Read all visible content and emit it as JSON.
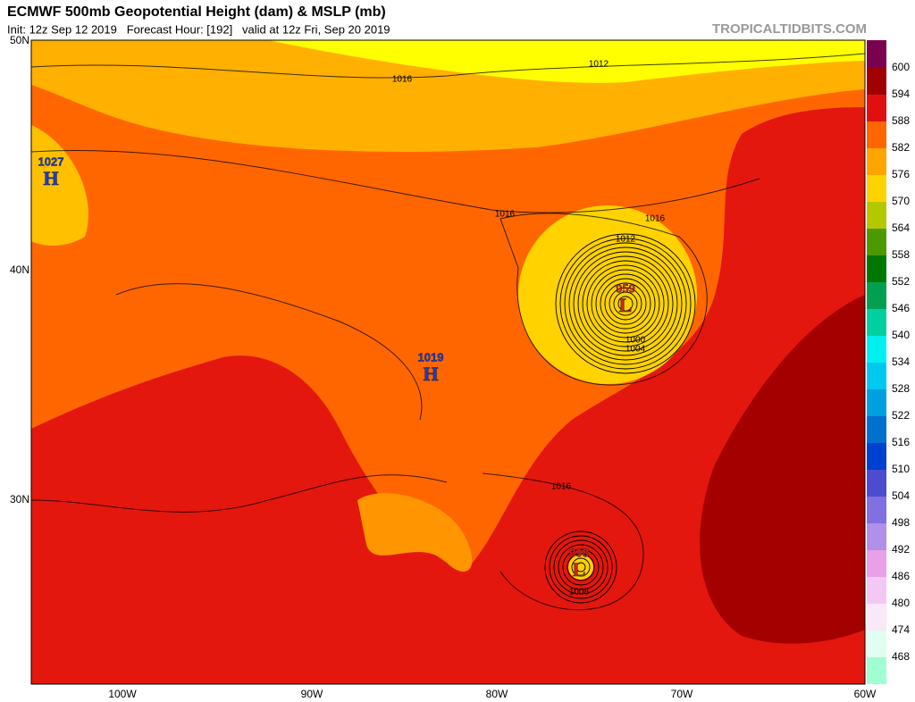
{
  "header": {
    "title": "ECMWF 500mb Geopotential Height (dam) & MSLP (mb)",
    "subtitle": "Init: 12z Sep 12 2019   Forecast Hour: [192]   valid at 12z Fri, Sep 20 2019",
    "watermark": "TROPICALTIDBITS.COM"
  },
  "latitude_labels": [
    "50N",
    "40N",
    "30N"
  ],
  "longitude_labels": [
    "100W",
    "90W",
    "80W",
    "70W",
    "60W"
  ],
  "colorbar": {
    "labels": [
      600,
      594,
      588,
      582,
      576,
      570,
      564,
      558,
      552,
      546,
      540,
      534,
      528,
      522,
      516,
      510,
      504,
      498,
      492,
      486,
      480,
      474,
      468
    ],
    "colors": [
      "#7a0050",
      "#a00000",
      "#e01010",
      "#ff6600",
      "#ffa500",
      "#ffd200",
      "#b4c800",
      "#4c9a00",
      "#007800",
      "#00a050",
      "#00d0a0",
      "#00f0f0",
      "#00c8f0",
      "#00a0e0",
      "#0070d0",
      "#0040d0",
      "#4c4cd0",
      "#8070e0",
      "#b090e8",
      "#e8a0e8",
      "#f4c8f4",
      "#f8e8f8",
      "#e0fff0",
      "#a0ffd0"
    ]
  },
  "pressure_centers": [
    {
      "type": "H",
      "value": "1027"
    },
    {
      "type": "H",
      "value": "1019"
    },
    {
      "type": "L",
      "value": "959"
    },
    {
      "type": "L",
      "value": "998"
    }
  ],
  "isobar_labels": [
    "1016",
    "1012",
    "1016",
    "1016",
    "1012",
    "1000",
    "1004",
    "1016",
    "1008"
  ]
}
